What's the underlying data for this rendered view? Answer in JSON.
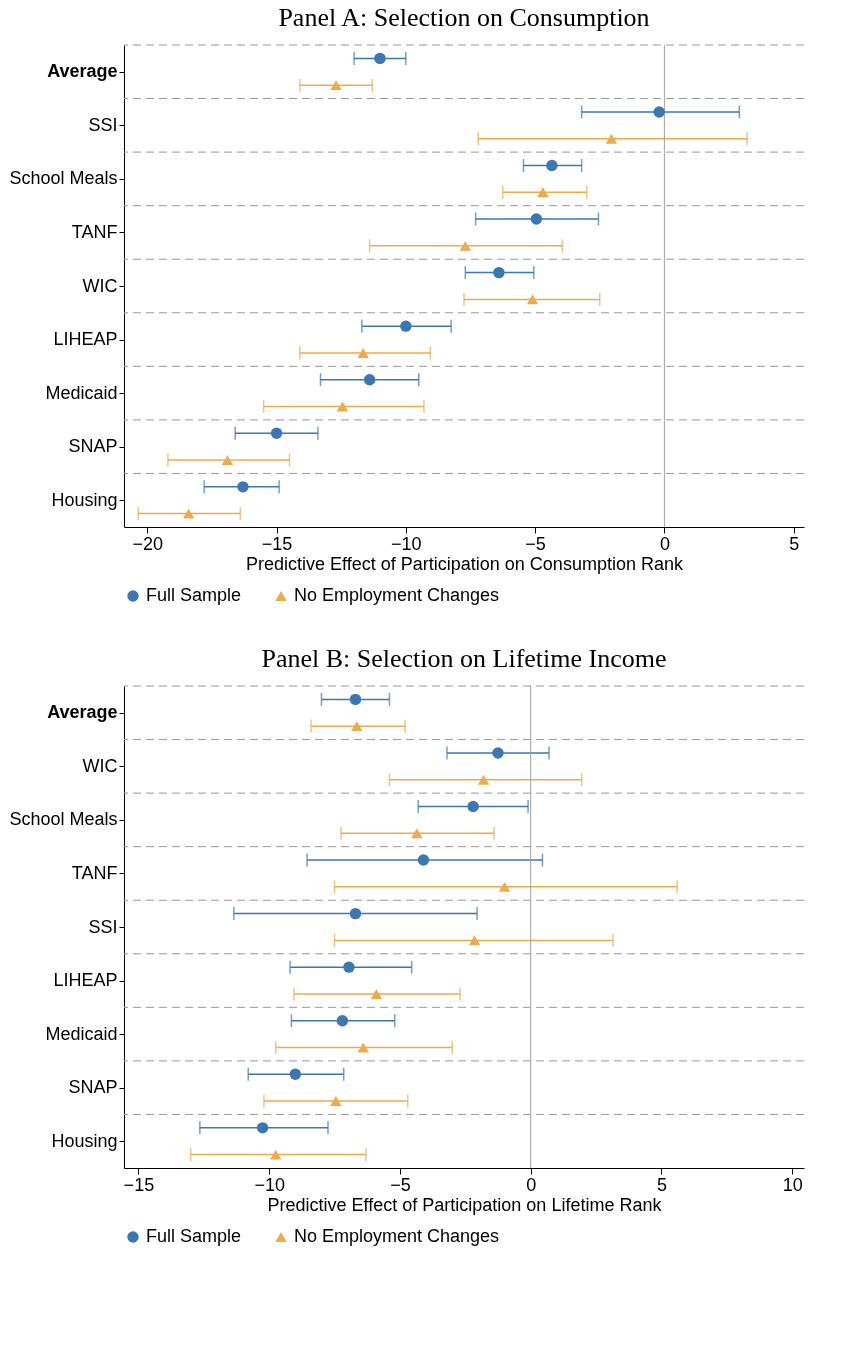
{
  "chart_data": [
    {
      "type": "scatter",
      "orientation": "horizontal",
      "title": "Panel A: Selection on Consumption",
      "xlabel": "Predictive Effect of Participation on Consumption Rank",
      "categories": [
        "Average",
        "SSI",
        "School Meals",
        "TANF",
        "WIC",
        "LIHEAP",
        "Medicaid",
        "SNAP",
        "Housing"
      ],
      "xlim": [
        -20.9,
        5.4
      ],
      "xticks": [
        -20,
        -15,
        -10,
        -5,
        0,
        5
      ],
      "grid": "y",
      "legend": "bottom",
      "ref_lines": [
        {
          "axis": "x",
          "value": 0,
          "color": "#a0a0a0"
        }
      ],
      "series": [
        {
          "name": "Full Sample",
          "color": "#3a77b3",
          "marker": "circle",
          "values": [
            -11.0,
            -0.2,
            -4.35,
            -4.95,
            -6.4,
            -10.0,
            -11.4,
            -15.0,
            -16.3
          ],
          "errors": [
            [
              -12.0,
              -10.0
            ],
            [
              -3.2,
              2.9
            ],
            [
              -5.45,
              -3.2
            ],
            [
              -7.3,
              -2.55
            ],
            [
              -7.7,
              -5.05
            ],
            [
              -11.7,
              -8.25
            ],
            [
              -13.3,
              -9.5
            ],
            [
              -16.6,
              -13.4
            ],
            [
              -17.8,
              -14.9
            ]
          ]
        },
        {
          "name": "No Employment Changes",
          "color": "#eeab4e",
          "marker": "triangle",
          "values": [
            -12.7,
            -2.05,
            -4.7,
            -7.7,
            -5.1,
            -11.65,
            -12.45,
            -16.9,
            -18.4
          ],
          "errors": [
            [
              -14.1,
              -11.3
            ],
            [
              -7.2,
              3.2
            ],
            [
              -6.25,
              -3.0
            ],
            [
              -11.4,
              -3.95
            ],
            [
              -7.75,
              -2.5
            ],
            [
              -14.1,
              -9.05
            ],
            [
              -15.5,
              -9.3
            ],
            [
              -19.2,
              -14.5
            ],
            [
              -20.35,
              -16.4
            ]
          ]
        }
      ]
    },
    {
      "type": "scatter",
      "orientation": "horizontal",
      "title": "Panel B: Selection on Lifetime Income",
      "xlabel": "Predictive Effect of Participation on Lifetime Rank",
      "categories": [
        "Average",
        "WIC",
        "School Meals",
        "TANF",
        "SSI",
        "LIHEAP",
        "Medicaid",
        "SNAP",
        "Housing"
      ],
      "xlim": [
        -15.55,
        10.45
      ],
      "xticks": [
        -15,
        -10,
        -5,
        0,
        5,
        10
      ],
      "grid": "y",
      "legend": "bottom",
      "ref_lines": [
        {
          "axis": "x",
          "value": 0,
          "color": "#a0a0a0"
        }
      ],
      "series": [
        {
          "name": "Full Sample",
          "color": "#3a77b3",
          "marker": "circle",
          "values": [
            -6.7,
            -1.25,
            -2.2,
            -4.1,
            -6.7,
            -6.95,
            -7.2,
            -9.0,
            -10.25
          ],
          "errors": [
            [
              -8.0,
              -5.4
            ],
            [
              -3.2,
              0.7
            ],
            [
              -4.3,
              -0.1
            ],
            [
              -8.55,
              0.45
            ],
            [
              -11.35,
              -2.05
            ],
            [
              -9.2,
              -4.55
            ],
            [
              -9.15,
              -5.2
            ],
            [
              -10.8,
              -7.15
            ],
            [
              -12.65,
              -7.75
            ]
          ]
        },
        {
          "name": "No Employment Changes",
          "color": "#eeab4e",
          "marker": "triangle",
          "values": [
            -6.65,
            -1.8,
            -4.35,
            -1.0,
            -2.15,
            -5.9,
            -6.4,
            -7.45,
            -9.75
          ],
          "errors": [
            [
              -8.4,
              -4.8
            ],
            [
              -5.4,
              1.95
            ],
            [
              -7.25,
              -1.4
            ],
            [
              -7.5,
              5.6
            ],
            [
              -7.5,
              3.15
            ],
            [
              -9.05,
              -2.7
            ],
            [
              -9.75,
              -3.0
            ],
            [
              -10.2,
              -4.7
            ],
            [
              -13.0,
              -6.3
            ]
          ]
        }
      ]
    }
  ]
}
